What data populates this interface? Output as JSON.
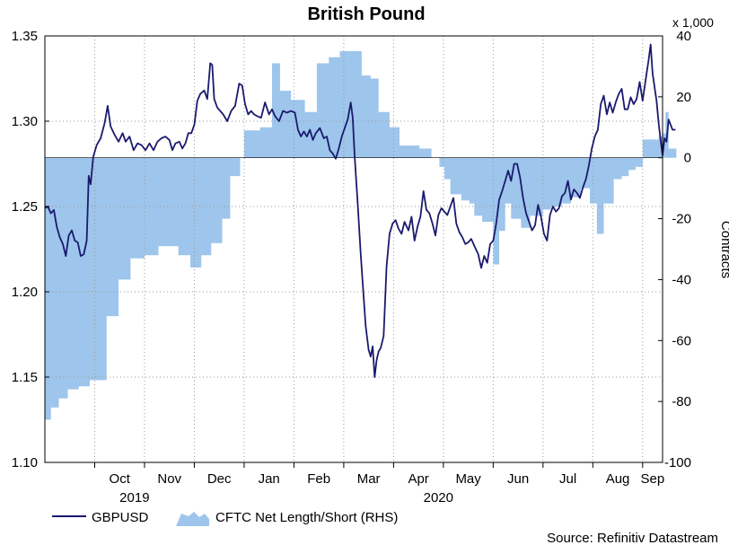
{
  "chart_data": {
    "type": "line+area",
    "title": "British Pound",
    "right_unit": "x 1,000",
    "right_axis_label": "Contracts",
    "source": "Source: Refinitiv Datastream",
    "left_axis": {
      "ylim": [
        1.1,
        1.35
      ],
      "ticks": [
        "1.10",
        "1.15",
        "1.20",
        "1.25",
        "1.30",
        "1.35"
      ]
    },
    "right_axis": {
      "ylim": [
        -100,
        40
      ],
      "ticks": [
        "-100",
        "-80",
        "-60",
        "-40",
        "-20",
        "0",
        "20",
        "40"
      ]
    },
    "x_range": [
      0,
      12.4
    ],
    "months": [
      {
        "label": "Oct",
        "x": 1.5
      },
      {
        "label": "Nov",
        "x": 2.5
      },
      {
        "label": "Dec",
        "x": 3.5
      },
      {
        "label": "Jan",
        "x": 4.5
      },
      {
        "label": "Feb",
        "x": 5.5
      },
      {
        "label": "Mar",
        "x": 6.5
      },
      {
        "label": "Apr",
        "x": 7.5
      },
      {
        "label": "May",
        "x": 8.5
      },
      {
        "label": "Jun",
        "x": 9.5
      },
      {
        "label": "Jul",
        "x": 10.5
      },
      {
        "label": "Aug",
        "x": 11.5
      },
      {
        "label": "Sep",
        "x": 12.2
      }
    ],
    "month_boundaries": [
      1,
      2,
      3,
      4,
      5,
      6,
      7,
      8,
      9,
      10,
      11,
      12
    ],
    "years": [
      {
        "label": "2019",
        "x": 1.8
      },
      {
        "label": "2020",
        "x": 7.9
      }
    ],
    "legend": [
      {
        "name": "GBPUSD",
        "kind": "line",
        "color": "#1a1a6e"
      },
      {
        "name": "CFTC Net Length/Short (RHS)",
        "kind": "area",
        "color": "#9ec5eb"
      }
    ],
    "series": [
      {
        "name": "GBPUSD",
        "kind": "line",
        "axis": "left",
        "color": "#1a1a6e",
        "points": [
          [
            0.0,
            1.249
          ],
          [
            0.06,
            1.25
          ],
          [
            0.12,
            1.246
          ],
          [
            0.18,
            1.248
          ],
          [
            0.24,
            1.238
          ],
          [
            0.3,
            1.232
          ],
          [
            0.36,
            1.228
          ],
          [
            0.42,
            1.221
          ],
          [
            0.48,
            1.233
          ],
          [
            0.54,
            1.236
          ],
          [
            0.6,
            1.23
          ],
          [
            0.66,
            1.229
          ],
          [
            0.72,
            1.221
          ],
          [
            0.78,
            1.222
          ],
          [
            0.84,
            1.23
          ],
          [
            0.88,
            1.268
          ],
          [
            0.92,
            1.263
          ],
          [
            0.97,
            1.279
          ],
          [
            1.04,
            1.286
          ],
          [
            1.12,
            1.29
          ],
          [
            1.2,
            1.299
          ],
          [
            1.26,
            1.309
          ],
          [
            1.32,
            1.297
          ],
          [
            1.4,
            1.292
          ],
          [
            1.48,
            1.288
          ],
          [
            1.56,
            1.293
          ],
          [
            1.62,
            1.288
          ],
          [
            1.7,
            1.291
          ],
          [
            1.78,
            1.283
          ],
          [
            1.86,
            1.287
          ],
          [
            1.94,
            1.286
          ],
          [
            2.02,
            1.283
          ],
          [
            2.1,
            1.287
          ],
          [
            2.18,
            1.283
          ],
          [
            2.26,
            1.288
          ],
          [
            2.34,
            1.29
          ],
          [
            2.42,
            1.291
          ],
          [
            2.5,
            1.289
          ],
          [
            2.56,
            1.283
          ],
          [
            2.62,
            1.287
          ],
          [
            2.7,
            1.288
          ],
          [
            2.76,
            1.284
          ],
          [
            2.82,
            1.287
          ],
          [
            2.88,
            1.293
          ],
          [
            2.94,
            1.293
          ],
          [
            3.0,
            1.298
          ],
          [
            3.06,
            1.312
          ],
          [
            3.12,
            1.316
          ],
          [
            3.2,
            1.318
          ],
          [
            3.26,
            1.313
          ],
          [
            3.32,
            1.334
          ],
          [
            3.36,
            1.333
          ],
          [
            3.4,
            1.313
          ],
          [
            3.46,
            1.308
          ],
          [
            3.52,
            1.306
          ],
          [
            3.58,
            1.304
          ],
          [
            3.66,
            1.3
          ],
          [
            3.74,
            1.306
          ],
          [
            3.82,
            1.309
          ],
          [
            3.9,
            1.322
          ],
          [
            3.96,
            1.321
          ],
          [
            4.02,
            1.31
          ],
          [
            4.08,
            1.304
          ],
          [
            4.14,
            1.306
          ],
          [
            4.2,
            1.304
          ],
          [
            4.26,
            1.303
          ],
          [
            4.34,
            1.302
          ],
          [
            4.42,
            1.311
          ],
          [
            4.5,
            1.304
          ],
          [
            4.56,
            1.307
          ],
          [
            4.62,
            1.303
          ],
          [
            4.7,
            1.3
          ],
          [
            4.78,
            1.306
          ],
          [
            4.86,
            1.305
          ],
          [
            4.94,
            1.306
          ],
          [
            5.02,
            1.305
          ],
          [
            5.08,
            1.295
          ],
          [
            5.14,
            1.291
          ],
          [
            5.2,
            1.294
          ],
          [
            5.26,
            1.291
          ],
          [
            5.32,
            1.295
          ],
          [
            5.38,
            1.289
          ],
          [
            5.44,
            1.293
          ],
          [
            5.52,
            1.296
          ],
          [
            5.6,
            1.29
          ],
          [
            5.66,
            1.291
          ],
          [
            5.72,
            1.283
          ],
          [
            5.78,
            1.281
          ],
          [
            5.84,
            1.278
          ],
          [
            5.9,
            1.284
          ],
          [
            5.96,
            1.291
          ],
          [
            6.02,
            1.296
          ],
          [
            6.08,
            1.301
          ],
          [
            6.14,
            1.311
          ],
          [
            6.18,
            1.302
          ],
          [
            6.22,
            1.279
          ],
          [
            6.28,
            1.252
          ],
          [
            6.34,
            1.222
          ],
          [
            6.38,
            1.205
          ],
          [
            6.44,
            1.18
          ],
          [
            6.5,
            1.166
          ],
          [
            6.54,
            1.162
          ],
          [
            6.58,
            1.168
          ],
          [
            6.62,
            1.15
          ],
          [
            6.66,
            1.16
          ],
          [
            6.7,
            1.165
          ],
          [
            6.74,
            1.167
          ],
          [
            6.8,
            1.174
          ],
          [
            6.86,
            1.215
          ],
          [
            6.92,
            1.234
          ],
          [
            6.98,
            1.24
          ],
          [
            7.04,
            1.242
          ],
          [
            7.1,
            1.237
          ],
          [
            7.16,
            1.234
          ],
          [
            7.22,
            1.241
          ],
          [
            7.3,
            1.236
          ],
          [
            7.36,
            1.244
          ],
          [
            7.42,
            1.23
          ],
          [
            7.48,
            1.238
          ],
          [
            7.54,
            1.244
          ],
          [
            7.6,
            1.259
          ],
          [
            7.66,
            1.248
          ],
          [
            7.72,
            1.246
          ],
          [
            7.78,
            1.24
          ],
          [
            7.84,
            1.233
          ],
          [
            7.9,
            1.245
          ],
          [
            7.96,
            1.249
          ],
          [
            8.02,
            1.247
          ],
          [
            8.08,
            1.245
          ],
          [
            8.14,
            1.25
          ],
          [
            8.2,
            1.255
          ],
          [
            8.26,
            1.24
          ],
          [
            8.32,
            1.235
          ],
          [
            8.38,
            1.232
          ],
          [
            8.44,
            1.228
          ],
          [
            8.5,
            1.229
          ],
          [
            8.56,
            1.231
          ],
          [
            8.62,
            1.227
          ],
          [
            8.7,
            1.222
          ],
          [
            8.76,
            1.214
          ],
          [
            8.82,
            1.221
          ],
          [
            8.88,
            1.217
          ],
          [
            8.94,
            1.228
          ],
          [
            9.0,
            1.23
          ],
          [
            9.06,
            1.24
          ],
          [
            9.12,
            1.254
          ],
          [
            9.18,
            1.259
          ],
          [
            9.24,
            1.265
          ],
          [
            9.3,
            1.271
          ],
          [
            9.36,
            1.265
          ],
          [
            9.42,
            1.275
          ],
          [
            9.48,
            1.275
          ],
          [
            9.54,
            1.267
          ],
          [
            9.6,
            1.255
          ],
          [
            9.66,
            1.246
          ],
          [
            9.72,
            1.241
          ],
          [
            9.78,
            1.236
          ],
          [
            9.84,
            1.239
          ],
          [
            9.9,
            1.251
          ],
          [
            9.96,
            1.244
          ],
          [
            10.02,
            1.234
          ],
          [
            10.08,
            1.23
          ],
          [
            10.14,
            1.245
          ],
          [
            10.2,
            1.25
          ],
          [
            10.26,
            1.247
          ],
          [
            10.32,
            1.249
          ],
          [
            10.38,
            1.256
          ],
          [
            10.44,
            1.258
          ],
          [
            10.5,
            1.265
          ],
          [
            10.56,
            1.254
          ],
          [
            10.62,
            1.26
          ],
          [
            10.68,
            1.258
          ],
          [
            10.74,
            1.255
          ],
          [
            10.8,
            1.261
          ],
          [
            10.86,
            1.266
          ],
          [
            10.92,
            1.274
          ],
          [
            10.98,
            1.284
          ],
          [
            11.04,
            1.291
          ],
          [
            11.1,
            1.295
          ],
          [
            11.16,
            1.31
          ],
          [
            11.22,
            1.315
          ],
          [
            11.28,
            1.304
          ],
          [
            11.34,
            1.311
          ],
          [
            11.4,
            1.305
          ],
          [
            11.46,
            1.311
          ],
          [
            11.52,
            1.316
          ],
          [
            11.58,
            1.319
          ],
          [
            11.64,
            1.307
          ],
          [
            11.7,
            1.307
          ],
          [
            11.76,
            1.314
          ],
          [
            11.82,
            1.31
          ],
          [
            11.88,
            1.313
          ],
          [
            11.94,
            1.323
          ],
          [
            12.0,
            1.312
          ],
          [
            12.04,
            1.32
          ],
          [
            12.08,
            1.328
          ],
          [
            12.12,
            1.336
          ],
          [
            12.16,
            1.345
          ],
          [
            12.2,
            1.328
          ],
          [
            12.24,
            1.32
          ],
          [
            12.28,
            1.312
          ],
          [
            12.32,
            1.299
          ],
          [
            12.36,
            1.289
          ],
          [
            12.4,
            1.28
          ],
          [
            12.44,
            1.29
          ],
          [
            12.48,
            1.288
          ],
          [
            12.52,
            1.301
          ],
          [
            12.56,
            1.298
          ],
          [
            12.6,
            1.295
          ],
          [
            12.66,
            1.295
          ]
        ]
      },
      {
        "name": "CFTC Net Length/Short (RHS)",
        "kind": "area",
        "axis": "right",
        "color": "#9ec5eb",
        "steps": [
          [
            0.0,
            -86
          ],
          [
            0.12,
            -82
          ],
          [
            0.28,
            -79
          ],
          [
            0.46,
            -76
          ],
          [
            0.68,
            -75
          ],
          [
            0.9,
            -73
          ],
          [
            1.24,
            -52
          ],
          [
            1.48,
            -40
          ],
          [
            1.72,
            -33
          ],
          [
            2.0,
            -32
          ],
          [
            2.28,
            -29
          ],
          [
            2.68,
            -32
          ],
          [
            2.92,
            -36
          ],
          [
            3.14,
            -32
          ],
          [
            3.34,
            -28
          ],
          [
            3.56,
            -20
          ],
          [
            3.72,
            -6
          ],
          [
            3.92,
            0
          ],
          [
            4.0,
            9
          ],
          [
            4.1,
            9
          ],
          [
            4.32,
            10
          ],
          [
            4.56,
            31
          ],
          [
            4.72,
            22
          ],
          [
            4.94,
            19
          ],
          [
            5.22,
            15
          ],
          [
            5.46,
            31
          ],
          [
            5.7,
            33
          ],
          [
            5.92,
            35
          ],
          [
            6.14,
            35
          ],
          [
            6.36,
            27
          ],
          [
            6.54,
            26
          ],
          [
            6.7,
            15
          ],
          [
            6.92,
            10
          ],
          [
            7.12,
            4
          ],
          [
            7.52,
            3
          ],
          [
            7.76,
            0
          ],
          [
            7.92,
            -3
          ],
          [
            8.02,
            -7
          ],
          [
            8.14,
            -12
          ],
          [
            8.36,
            -14
          ],
          [
            8.52,
            -15
          ],
          [
            8.62,
            -19
          ],
          [
            8.78,
            -21
          ],
          [
            9.0,
            -35
          ],
          [
            9.12,
            -24
          ],
          [
            9.24,
            -15
          ],
          [
            9.36,
            -20
          ],
          [
            9.56,
            -23
          ],
          [
            9.74,
            -19
          ],
          [
            10.0,
            -17
          ],
          [
            10.16,
            -16
          ],
          [
            10.38,
            -15
          ],
          [
            10.46,
            -15
          ],
          [
            10.56,
            -13
          ],
          [
            10.76,
            -10
          ],
          [
            10.94,
            -15
          ],
          [
            11.08,
            -25
          ],
          [
            11.22,
            -15
          ],
          [
            11.42,
            -7
          ],
          [
            11.58,
            -6
          ],
          [
            11.72,
            -4
          ],
          [
            11.86,
            -3
          ],
          [
            12.0,
            6
          ],
          [
            12.24,
            6
          ],
          [
            12.32,
            7
          ],
          [
            12.4,
            8
          ],
          [
            12.46,
            15
          ],
          [
            12.52,
            3
          ],
          [
            12.66,
            3
          ]
        ]
      }
    ]
  }
}
